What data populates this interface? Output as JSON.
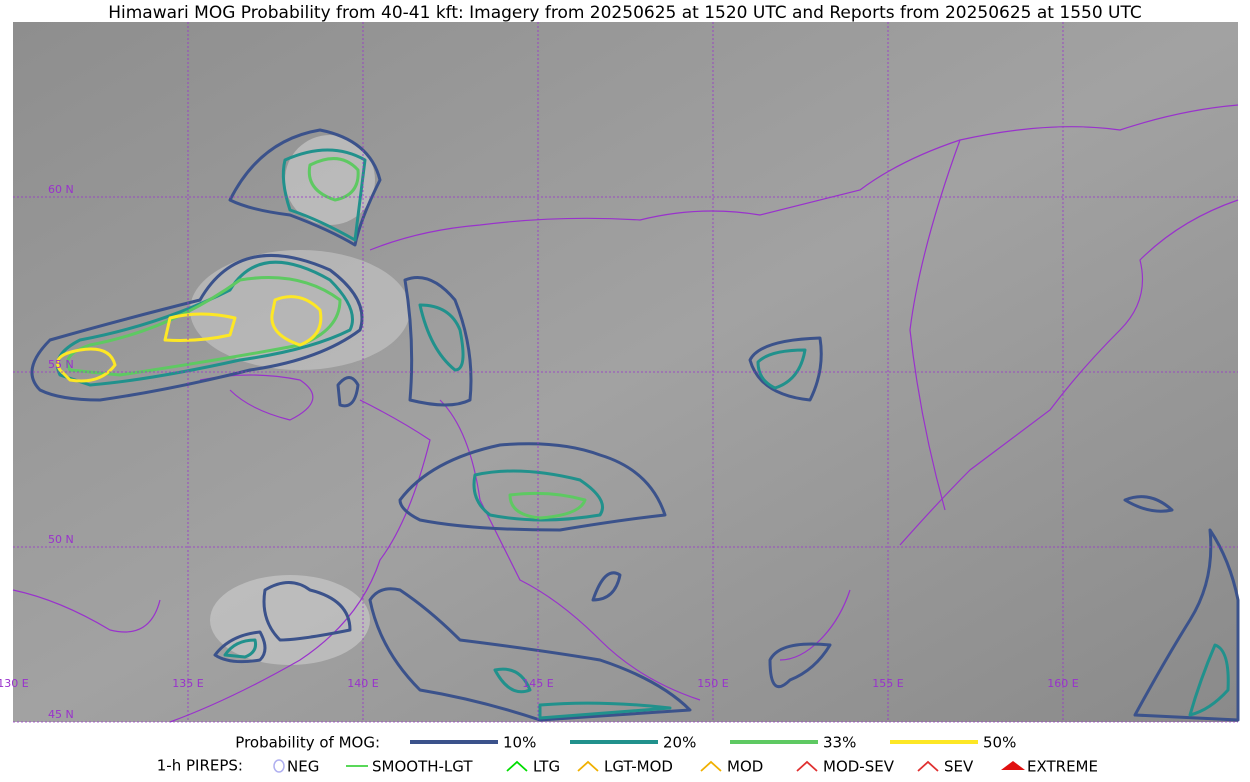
{
  "title": "Himawari MOG Probability from 40-41 kft: Imagery from 20250625 at 1520 UTC and Reports from 20250625 at 1550 UTC",
  "map": {
    "lat_labels": [
      "60 N",
      "55 N",
      "50 N",
      "45 N"
    ],
    "lon_labels": [
      "130 E",
      "135 E",
      "140 E",
      "145 E",
      "150 E",
      "155 E",
      "160 E"
    ],
    "grid_color": "#9932cc"
  },
  "legend": {
    "probability_label": "Probability of MOG:",
    "levels": [
      {
        "label": "10%",
        "color": "#3b528b"
      },
      {
        "label": "20%",
        "color": "#21918c"
      },
      {
        "label": "33%",
        "color": "#5ec962"
      },
      {
        "label": "50%",
        "color": "#fde725"
      }
    ],
    "pireps_label": "1-h PIREPS:",
    "pireps": [
      {
        "label": "NEG",
        "color": "#b0b0f0"
      },
      {
        "label": "SMOOTH-LGT",
        "color": "#22cc22"
      },
      {
        "label": "LTG",
        "color": "#00dd00"
      },
      {
        "label": "LGT-MOD",
        "color": "#f0b000"
      },
      {
        "label": "MOD",
        "color": "#f0b000"
      },
      {
        "label": "MOD-SEV",
        "color": "#e03030"
      },
      {
        "label": "SEV",
        "color": "#e03030"
      },
      {
        "label": "EXTREME",
        "color": "#e01010"
      }
    ]
  }
}
